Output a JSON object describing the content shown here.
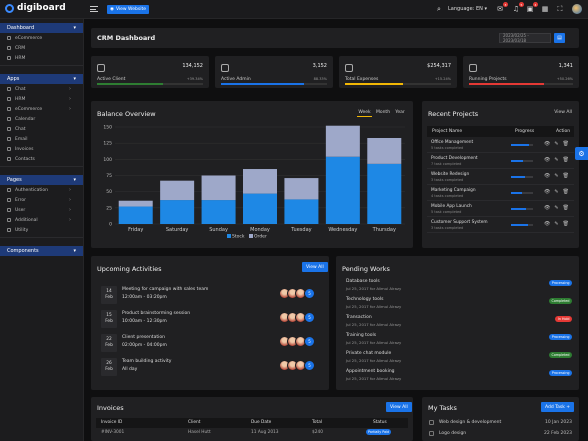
{
  "brand": {
    "name": "digiboard"
  },
  "topbar": {
    "view_website": "View Website",
    "language": "Language: EN",
    "notif_counts": [
      "3",
      "5",
      "4"
    ]
  },
  "sidebar": {
    "dashboard_head": "Dashboard",
    "dashboard_items": [
      "eCommerce",
      "CRM",
      "HRM"
    ],
    "apps_head": "Apps",
    "apps_items": [
      "Chat",
      "HRM",
      "eCommerce",
      "Calendar",
      "Chat",
      "Email",
      "Invoices",
      "Contacts"
    ],
    "pages_head": "Pages",
    "pages_items": [
      "Authentication",
      "Error",
      "User",
      "Additional",
      "Utility"
    ],
    "components_head": "Components"
  },
  "header": {
    "title": "CRM Dashboard",
    "date_range": "2023/02/25 - 2023/03/18"
  },
  "stats": [
    {
      "label": "Active Client",
      "value": "134,152",
      "change": "+39.34%",
      "progress": 0.62,
      "color": "#2e7d32"
    },
    {
      "label": "Active Admin",
      "value": "3,152",
      "change": "88.33%",
      "progress": 0.78,
      "color": "#1a73e8"
    },
    {
      "label": "Total Expenses",
      "value": "$254,317",
      "change": "+15.24%",
      "progress": 0.55,
      "color": "#f2b705"
    },
    {
      "label": "Running Projects",
      "value": "1,341",
      "change": "+50.26%",
      "progress": 0.72,
      "color": "#e53935"
    }
  ],
  "balance": {
    "title": "Balance Overview",
    "periods": [
      "Week",
      "Month",
      "Year"
    ]
  },
  "chart_data": {
    "type": "bar",
    "categories": [
      "Friday",
      "Saturday",
      "Sunday",
      "Monday",
      "Tuesday",
      "Wednesday",
      "Thursday"
    ],
    "series": [
      {
        "name": "Stock",
        "values": [
          27,
          37,
          37,
          47,
          38,
          104,
          93
        ],
        "color": "#1e88e5"
      },
      {
        "name": "Order",
        "values": [
          9,
          30,
          38,
          38,
          33,
          48,
          40
        ],
        "color": "#9ea8c9"
      }
    ],
    "ylim": [
      0,
      150
    ],
    "yticks": [
      0,
      25,
      50,
      75,
      100,
      125,
      150
    ],
    "stacked": true,
    "legend": "bottom"
  },
  "projects": {
    "title": "Recent Projects",
    "view_all": "View All",
    "headers": [
      "Project Name",
      "Progress",
      "Action"
    ],
    "rows": [
      {
        "name": "Office Management",
        "sub": "5 tasks completed",
        "progress": 0.82
      },
      {
        "name": "Product Development",
        "sub": "7 task completed",
        "progress": 0.55
      },
      {
        "name": "Website Redesign",
        "sub": "3 tasks completed",
        "progress": 0.62
      },
      {
        "name": "Marketing Campaign",
        "sub": "4 tasks completed",
        "progress": 0.48
      },
      {
        "name": "Mobile App Launch",
        "sub": "5 task completed",
        "progress": 0.7
      },
      {
        "name": "Customer Support System",
        "sub": "3 tasks completed",
        "progress": 0.75
      }
    ]
  },
  "upcoming": {
    "title": "Upcoming Activities",
    "view_all": "View All",
    "items": [
      {
        "day": "14",
        "month": "Feb",
        "title": "Meeting for campaign with sales team",
        "time": "12:00am - 03:20pm",
        "more": "5"
      },
      {
        "day": "15",
        "month": "Feb",
        "title": "Product brainstorming session",
        "time": "10:00am - 12:30pm",
        "more": "5"
      },
      {
        "day": "22",
        "month": "Feb",
        "title": "Client presentation",
        "time": "02:00pm - 04:00pm",
        "more": "5"
      },
      {
        "day": "26",
        "month": "Feb",
        "title": "Team building activity",
        "time": "All day",
        "more": "5"
      }
    ]
  },
  "pending": {
    "title": "Pending Works",
    "items": [
      {
        "title": "Database tools",
        "sub": "Jul 25, 2017 for Alimul Alrazy",
        "status": "Processing",
        "color": "#1a73e8"
      },
      {
        "title": "Technology tools",
        "sub": "Jul 25, 2017 for Alimul Alrazy",
        "status": "Completed",
        "color": "#2e7d32"
      },
      {
        "title": "Transaction",
        "sub": "Jul 25, 2017 for Alimul Alrazy",
        "status": "In Hold",
        "color": "#e53935"
      },
      {
        "title": "Training tools",
        "sub": "Jul 25, 2017 for Alimul Alrazy",
        "status": "Processing",
        "color": "#1a73e8"
      },
      {
        "title": "Private chat module",
        "sub": "Jul 25, 2017 for Alimul Alrazy",
        "status": "Completed",
        "color": "#2e7d32"
      },
      {
        "title": "Appointment booking",
        "sub": "Jul 25, 2017 for Alimul Alrazy",
        "status": "Processing",
        "color": "#1a73e8"
      }
    ]
  },
  "invoices": {
    "title": "Invoices",
    "view_all": "View All",
    "headers": [
      "Invoice ID",
      "Client",
      "Due Date",
      "Total",
      "Status"
    ],
    "row": {
      "id": "#INV-3001",
      "client": "Hasel Hutt",
      "due": "11 Aug 2013",
      "total": "$240",
      "status": "Partially Paid"
    }
  },
  "tasks": {
    "title": "My Tasks",
    "add": "Add Task +",
    "items": [
      {
        "label": "Web design & development",
        "date": "10 Jan 2023"
      },
      {
        "label": "Logo design",
        "date": "22 Feb 2023"
      }
    ]
  }
}
